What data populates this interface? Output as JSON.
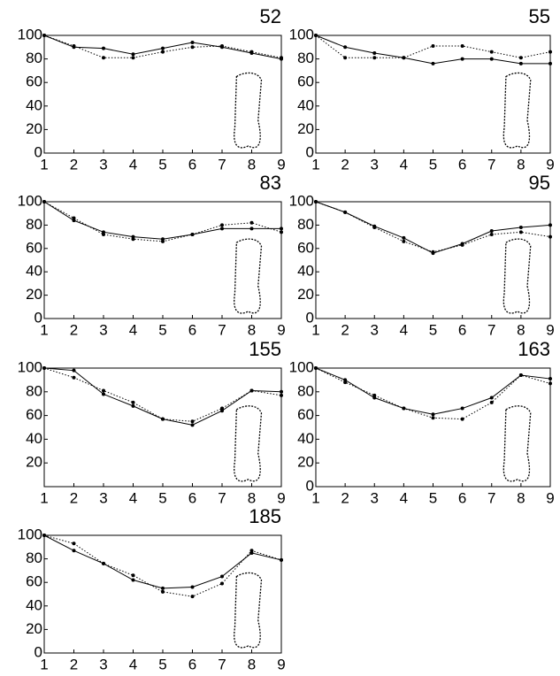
{
  "chart_data": [
    {
      "type": "line",
      "title": "52",
      "x": [
        1,
        2,
        3,
        4,
        5,
        6,
        7,
        8,
        9
      ],
      "xlim": [
        1,
        9
      ],
      "xticks": [
        1,
        2,
        3,
        4,
        5,
        6,
        7,
        8,
        9
      ],
      "ylim": [
        0,
        100
      ],
      "yticks": [
        0,
        20,
        40,
        60,
        80,
        100
      ],
      "series": [
        {
          "color": "#000000",
          "dash": "solid",
          "values": [
            100,
            90,
            89,
            84,
            89,
            94,
            90,
            85,
            80
          ]
        },
        {
          "color": "#000000",
          "dash": "dotted",
          "values": [
            100,
            91,
            81,
            81,
            86,
            90,
            91,
            86,
            81
          ]
        }
      ]
    },
    {
      "type": "line",
      "title": "55",
      "x": [
        1,
        2,
        3,
        4,
        5,
        6,
        7,
        8,
        9
      ],
      "xlim": [
        1,
        9
      ],
      "xticks": [
        1,
        2,
        3,
        4,
        5,
        6,
        7,
        8,
        9
      ],
      "ylim": [
        0,
        100
      ],
      "yticks": [
        0,
        20,
        40,
        60,
        80,
        100
      ],
      "series": [
        {
          "color": "#000000",
          "dash": "solid",
          "values": [
            100,
            90,
            85,
            81,
            76,
            80,
            80,
            76,
            76
          ]
        },
        {
          "color": "#000000",
          "dash": "dotted",
          "values": [
            100,
            81,
            81,
            81,
            91,
            91,
            86,
            81,
            86
          ]
        }
      ]
    },
    {
      "type": "line",
      "title": "83",
      "x": [
        1,
        2,
        3,
        4,
        5,
        6,
        7,
        8,
        9
      ],
      "xlim": [
        1,
        9
      ],
      "xticks": [
        1,
        2,
        3,
        4,
        5,
        6,
        7,
        8,
        9
      ],
      "ylim": [
        0,
        100
      ],
      "yticks": [
        0,
        20,
        40,
        60,
        80,
        100
      ],
      "series": [
        {
          "color": "#000000",
          "dash": "solid",
          "values": [
            100,
            84,
            74,
            70,
            68,
            72,
            77,
            77,
            77
          ]
        },
        {
          "color": "#000000",
          "dash": "dotted",
          "values": [
            100,
            86,
            72,
            68,
            66,
            72,
            80,
            82,
            74
          ]
        }
      ]
    },
    {
      "type": "line",
      "title": "95",
      "x": [
        1,
        2,
        3,
        4,
        5,
        6,
        7,
        8,
        9
      ],
      "xlim": [
        1,
        9
      ],
      "xticks": [
        1,
        2,
        3,
        4,
        5,
        6,
        7,
        8,
        9
      ],
      "ylim": [
        0,
        100
      ],
      "yticks": [
        0,
        20,
        40,
        60,
        80,
        100
      ],
      "series": [
        {
          "color": "#000000",
          "dash": "solid",
          "values": [
            100,
            91,
            79,
            69,
            56,
            64,
            75,
            78,
            80
          ]
        },
        {
          "color": "#000000",
          "dash": "dotted",
          "values": [
            100,
            91,
            78,
            66,
            57,
            63,
            72,
            74,
            70
          ]
        }
      ]
    },
    {
      "type": "line",
      "title": "155",
      "x": [
        1,
        2,
        3,
        4,
        5,
        6,
        7,
        8,
        9
      ],
      "xlim": [
        1,
        9
      ],
      "xticks": [
        1,
        2,
        3,
        4,
        5,
        6,
        7,
        8,
        9
      ],
      "ylim": [
        0,
        100
      ],
      "yticks": [
        20,
        40,
        60,
        80,
        100
      ],
      "series": [
        {
          "color": "#000000",
          "dash": "solid",
          "values": [
            100,
            98,
            78,
            68,
            57,
            52,
            64,
            81,
            80
          ]
        },
        {
          "color": "#000000",
          "dash": "dotted",
          "values": [
            100,
            92,
            81,
            71,
            57,
            55,
            66,
            81,
            77
          ]
        }
      ]
    },
    {
      "type": "line",
      "title": "163",
      "x": [
        1,
        2,
        3,
        4,
        5,
        6,
        7,
        8,
        9
      ],
      "xlim": [
        1,
        9
      ],
      "xticks": [
        1,
        2,
        3,
        4,
        5,
        6,
        7,
        8,
        9
      ],
      "ylim": [
        0,
        100
      ],
      "yticks": [
        0,
        20,
        40,
        60,
        80,
        100
      ],
      "series": [
        {
          "color": "#000000",
          "dash": "solid",
          "values": [
            100,
            90,
            75,
            66,
            61,
            66,
            75,
            94,
            91
          ]
        },
        {
          "color": "#000000",
          "dash": "dotted",
          "values": [
            100,
            88,
            77,
            66,
            58,
            57,
            71,
            94,
            87
          ]
        }
      ]
    },
    {
      "type": "line",
      "title": "185",
      "x": [
        1,
        2,
        3,
        4,
        5,
        6,
        7,
        8,
        9
      ],
      "xlim": [
        1,
        9
      ],
      "xticks": [
        1,
        2,
        3,
        4,
        5,
        6,
        7,
        8,
        9
      ],
      "ylim": [
        0,
        100
      ],
      "yticks": [
        0,
        20,
        40,
        60,
        80,
        100
      ],
      "series": [
        {
          "color": "#000000",
          "dash": "solid",
          "values": [
            100,
            87,
            76,
            62,
            55,
            56,
            65,
            85,
            79
          ]
        },
        {
          "color": "#000000",
          "dash": "dotted",
          "values": [
            100,
            93,
            76,
            66,
            52,
            48,
            59,
            87,
            79
          ]
        }
      ]
    }
  ]
}
